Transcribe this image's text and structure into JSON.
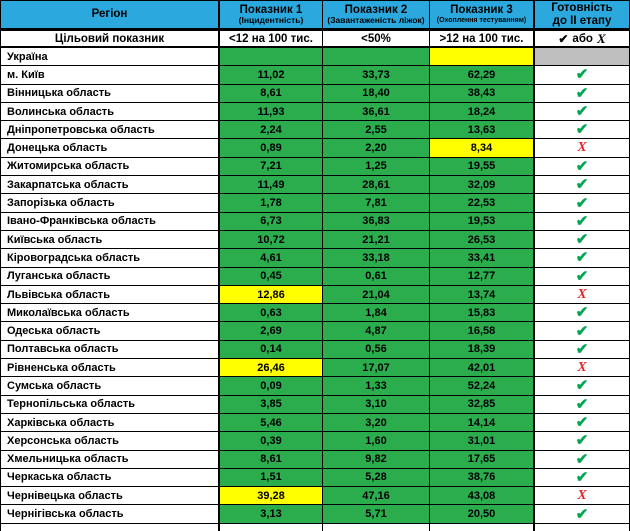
{
  "colors": {
    "header_blue": "#2BA9DF",
    "cell_green": "#2BAD4E",
    "highlight_yellow": "#FFFF00",
    "na_gray": "#BFBFBF",
    "check_green": "#00A651",
    "cross_red": "#E3242B"
  },
  "table": {
    "header": {
      "region": "Регіон",
      "col1_title": "Показник 1",
      "col1_sub": "(Інцидентність)",
      "col2_title": "Показник 2",
      "col2_sub": "(Завантаженість ліжок)",
      "col3_title": "Показник 3",
      "col3_sub": "(Охоплення тестуванням)",
      "col4_line1": "Готовність",
      "col4_line2": "до II етапу"
    },
    "target_row": {
      "label": "Цільовий показник",
      "v1": "<12 на 100 тис.",
      "v2": "<50%",
      "v3": ">12 на 100 тис.",
      "check": "✔",
      "or_text": "або",
      "cross": "Х"
    },
    "icons": {
      "check": "✔",
      "cross": "Х"
    },
    "rows": [
      {
        "region": "Україна",
        "v1": "",
        "v2": "",
        "v3": "",
        "c1": "green",
        "c2": "green",
        "c3": "yellow",
        "c4": "gray",
        "status": ""
      },
      {
        "region": "м. Київ",
        "v1": "11,02",
        "v2": "33,73",
        "v3": "62,29",
        "c1": "green",
        "c2": "green",
        "c3": "green",
        "c4": "white",
        "status": "check"
      },
      {
        "region": "Вінницька область",
        "v1": "8,61",
        "v2": "18,40",
        "v3": "38,43",
        "c1": "green",
        "c2": "green",
        "c3": "green",
        "c4": "white",
        "status": "check"
      },
      {
        "region": "Волинська область",
        "v1": "11,93",
        "v2": "36,61",
        "v3": "18,24",
        "c1": "green",
        "c2": "green",
        "c3": "green",
        "c4": "white",
        "status": "check"
      },
      {
        "region": "Дніпропетровська область",
        "v1": "2,24",
        "v2": "2,55",
        "v3": "13,63",
        "c1": "green",
        "c2": "green",
        "c3": "green",
        "c4": "white",
        "status": "check"
      },
      {
        "region": "Донецька область",
        "v1": "0,89",
        "v2": "2,20",
        "v3": "8,34",
        "c1": "green",
        "c2": "green",
        "c3": "yellow",
        "c4": "white",
        "status": "cross"
      },
      {
        "region": "Житомирська область",
        "v1": "7,21",
        "v2": "1,25",
        "v3": "19,55",
        "c1": "green",
        "c2": "green",
        "c3": "green",
        "c4": "white",
        "status": "check"
      },
      {
        "region": "Закарпатська область",
        "v1": "11,49",
        "v2": "28,61",
        "v3": "32,09",
        "c1": "green",
        "c2": "green",
        "c3": "green",
        "c4": "white",
        "status": "check"
      },
      {
        "region": "Запорізька область",
        "v1": "1,78",
        "v2": "7,81",
        "v3": "22,53",
        "c1": "green",
        "c2": "green",
        "c3": "green",
        "c4": "white",
        "status": "check"
      },
      {
        "region": "Івано-Франківська область",
        "v1": "6,73",
        "v2": "36,83",
        "v3": "19,53",
        "c1": "green",
        "c2": "green",
        "c3": "green",
        "c4": "white",
        "status": "check"
      },
      {
        "region": "Київська область",
        "v1": "10,72",
        "v2": "21,21",
        "v3": "26,53",
        "c1": "green",
        "c2": "green",
        "c3": "green",
        "c4": "white",
        "status": "check"
      },
      {
        "region": "Кіровоградська область",
        "v1": "4,61",
        "v2": "33,18",
        "v3": "33,41",
        "c1": "green",
        "c2": "green",
        "c3": "green",
        "c4": "white",
        "status": "check"
      },
      {
        "region": "Луганська область",
        "v1": "0,45",
        "v2": "0,61",
        "v3": "12,77",
        "c1": "green",
        "c2": "green",
        "c3": "green",
        "c4": "white",
        "status": "check"
      },
      {
        "region": "Львівська область",
        "v1": "12,86",
        "v2": "21,04",
        "v3": "13,74",
        "c1": "yellow",
        "c2": "green",
        "c3": "green",
        "c4": "white",
        "status": "cross"
      },
      {
        "region": "Миколаївська область",
        "v1": "0,63",
        "v2": "1,84",
        "v3": "15,83",
        "c1": "green",
        "c2": "green",
        "c3": "green",
        "c4": "white",
        "status": "check"
      },
      {
        "region": "Одеська область",
        "v1": "2,69",
        "v2": "4,87",
        "v3": "16,58",
        "c1": "green",
        "c2": "green",
        "c3": "green",
        "c4": "white",
        "status": "check"
      },
      {
        "region": "Полтавська область",
        "v1": "0,14",
        "v2": "0,56",
        "v3": "18,39",
        "c1": "green",
        "c2": "green",
        "c3": "green",
        "c4": "white",
        "status": "check"
      },
      {
        "region": "Рівненська область",
        "v1": "26,46",
        "v2": "17,07",
        "v3": "42,01",
        "c1": "yellow",
        "c2": "green",
        "c3": "green",
        "c4": "white",
        "status": "cross"
      },
      {
        "region": "Сумська область",
        "v1": "0,09",
        "v2": "1,33",
        "v3": "52,24",
        "c1": "green",
        "c2": "green",
        "c3": "green",
        "c4": "white",
        "status": "check"
      },
      {
        "region": "Тернопільська область",
        "v1": "3,85",
        "v2": "3,10",
        "v3": "32,85",
        "c1": "green",
        "c2": "green",
        "c3": "green",
        "c4": "white",
        "status": "check"
      },
      {
        "region": "Харківська область",
        "v1": "5,46",
        "v2": "3,20",
        "v3": "14,14",
        "c1": "green",
        "c2": "green",
        "c3": "green",
        "c4": "white",
        "status": "check"
      },
      {
        "region": "Херсонська область",
        "v1": "0,39",
        "v2": "1,60",
        "v3": "31,01",
        "c1": "green",
        "c2": "green",
        "c3": "green",
        "c4": "white",
        "status": "check"
      },
      {
        "region": "Хмельницька область",
        "v1": "8,61",
        "v2": "9,82",
        "v3": "17,65",
        "c1": "green",
        "c2": "green",
        "c3": "green",
        "c4": "white",
        "status": "check"
      },
      {
        "region": "Черкаська область",
        "v1": "1,51",
        "v2": "5,28",
        "v3": "38,76",
        "c1": "green",
        "c2": "green",
        "c3": "green",
        "c4": "white",
        "status": "check"
      },
      {
        "region": "Чернівецька область",
        "v1": "39,28",
        "v2": "47,16",
        "v3": "43,08",
        "c1": "yellow",
        "c2": "green",
        "c3": "green",
        "c4": "white",
        "status": "cross"
      },
      {
        "region": "Чернігівська область",
        "v1": "3,13",
        "v2": "5,71",
        "v3": "20,50",
        "c1": "green",
        "c2": "green",
        "c3": "green",
        "c4": "white",
        "status": "check"
      }
    ]
  }
}
